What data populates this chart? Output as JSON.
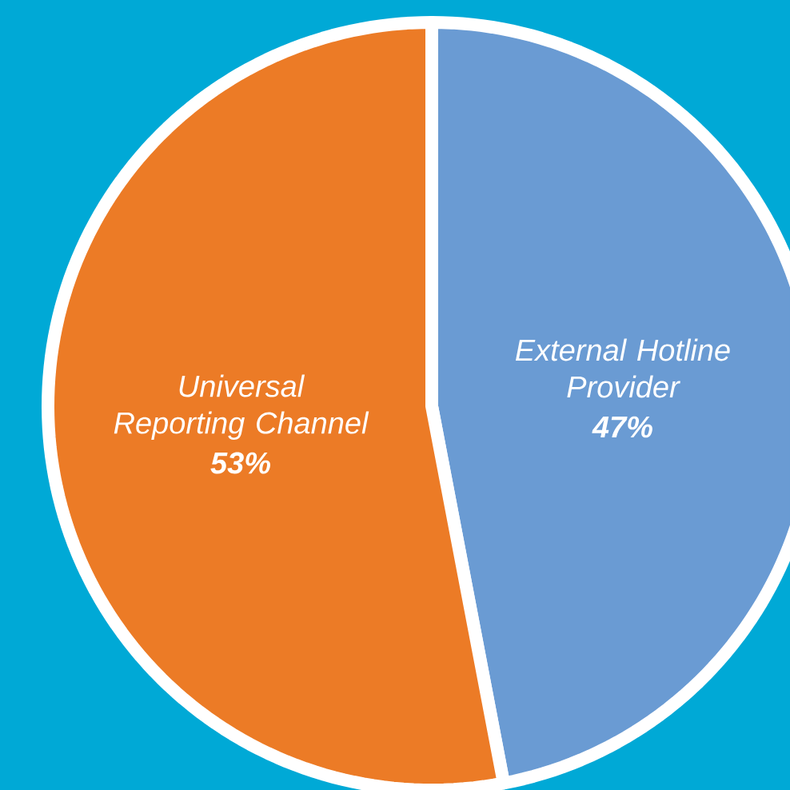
{
  "chart_data": {
    "type": "pie",
    "categories": [
      "External Hotline Provider",
      "Universal Reporting Channel"
    ],
    "values": [
      47,
      53
    ],
    "colors": [
      "#6a9bd3",
      "#ec7b26"
    ],
    "value_labels": [
      "47%",
      "53%"
    ]
  }
}
